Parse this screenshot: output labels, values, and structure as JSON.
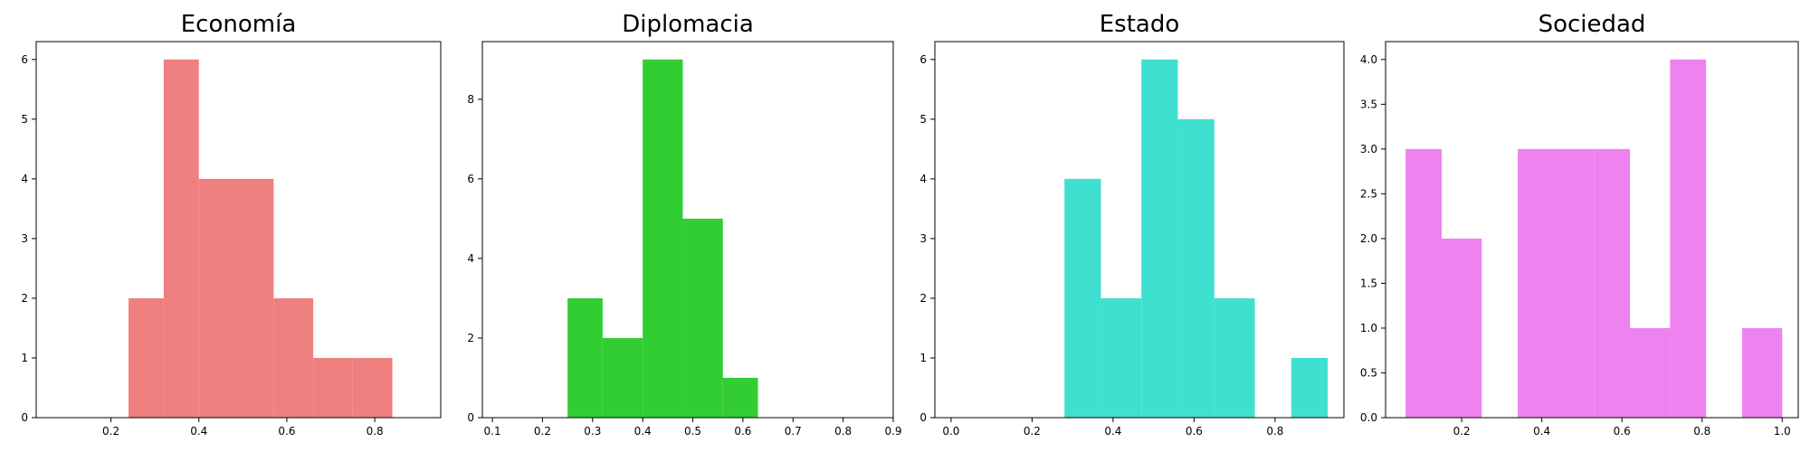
{
  "chart_data": [
    {
      "type": "bar",
      "title": "Economía",
      "color": "#f08080",
      "xlim": [
        0.03,
        0.95
      ],
      "ylim": [
        0,
        6.3
      ],
      "xticks": [
        "0.2",
        "0.4",
        "0.6",
        "0.8"
      ],
      "yticks": [
        "0",
        "1",
        "2",
        "3",
        "4",
        "5",
        "6"
      ],
      "bins": [
        {
          "x0": 0.24,
          "x1": 0.32,
          "count": 2
        },
        {
          "x0": 0.32,
          "x1": 0.4,
          "count": 6
        },
        {
          "x0": 0.4,
          "x1": 0.49,
          "count": 4
        },
        {
          "x0": 0.49,
          "x1": 0.57,
          "count": 4
        },
        {
          "x0": 0.57,
          "x1": 0.66,
          "count": 2
        },
        {
          "x0": 0.66,
          "x1": 0.75,
          "count": 1
        },
        {
          "x0": 0.75,
          "x1": 0.84,
          "count": 1
        }
      ]
    },
    {
      "type": "bar",
      "title": "Diplomacia",
      "color": "#32cd32",
      "xlim": [
        0.08,
        0.9
      ],
      "ylim": [
        0,
        9.45
      ],
      "xticks": [
        "0.1",
        "0.2",
        "0.3",
        "0.4",
        "0.5",
        "0.6",
        "0.7",
        "0.8",
        "0.9"
      ],
      "yticks": [
        "0",
        "2",
        "4",
        "6",
        "8"
      ],
      "bins": [
        {
          "x0": 0.25,
          "x1": 0.32,
          "count": 3
        },
        {
          "x0": 0.32,
          "x1": 0.4,
          "count": 2
        },
        {
          "x0": 0.4,
          "x1": 0.48,
          "count": 9
        },
        {
          "x0": 0.48,
          "x1": 0.56,
          "count": 5
        },
        {
          "x0": 0.56,
          "x1": 0.63,
          "count": 1
        }
      ]
    },
    {
      "type": "bar",
      "title": "Estado",
      "color": "#40e0d0",
      "xlim": [
        -0.04,
        0.97
      ],
      "ylim": [
        0,
        6.3
      ],
      "xticks": [
        "0.0",
        "0.2",
        "0.4",
        "0.6",
        "0.8"
      ],
      "yticks": [
        "0",
        "1",
        "2",
        "3",
        "4",
        "5",
        "6"
      ],
      "bins": [
        {
          "x0": 0.28,
          "x1": 0.37,
          "count": 4
        },
        {
          "x0": 0.37,
          "x1": 0.47,
          "count": 2
        },
        {
          "x0": 0.47,
          "x1": 0.56,
          "count": 6
        },
        {
          "x0": 0.56,
          "x1": 0.65,
          "count": 5
        },
        {
          "x0": 0.65,
          "x1": 0.75,
          "count": 2
        },
        {
          "x0": 0.75,
          "x1": 0.84,
          "count": 0
        },
        {
          "x0": 0.84,
          "x1": 0.93,
          "count": 1
        }
      ]
    },
    {
      "type": "bar",
      "title": "Sociedad",
      "color": "#ee82ee",
      "xlim": [
        0.01,
        1.04
      ],
      "ylim": [
        0,
        4.2
      ],
      "xticks": [
        "0.2",
        "0.4",
        "0.6",
        "0.8",
        "1.0"
      ],
      "yticks": [
        "0.0",
        "0.5",
        "1.0",
        "1.5",
        "2.0",
        "2.5",
        "3.0",
        "3.5",
        "4.0"
      ],
      "bins": [
        {
          "x0": 0.06,
          "x1": 0.15,
          "count": 3
        },
        {
          "x0": 0.15,
          "x1": 0.25,
          "count": 2
        },
        {
          "x0": 0.25,
          "x1": 0.34,
          "count": 0
        },
        {
          "x0": 0.34,
          "x1": 0.43,
          "count": 3
        },
        {
          "x0": 0.43,
          "x1": 0.53,
          "count": 3
        },
        {
          "x0": 0.53,
          "x1": 0.62,
          "count": 3
        },
        {
          "x0": 0.62,
          "x1": 0.72,
          "count": 1
        },
        {
          "x0": 0.72,
          "x1": 0.81,
          "count": 4
        },
        {
          "x0": 0.81,
          "x1": 0.9,
          "count": 0
        },
        {
          "x0": 0.9,
          "x1": 1.0,
          "count": 1
        }
      ]
    }
  ]
}
